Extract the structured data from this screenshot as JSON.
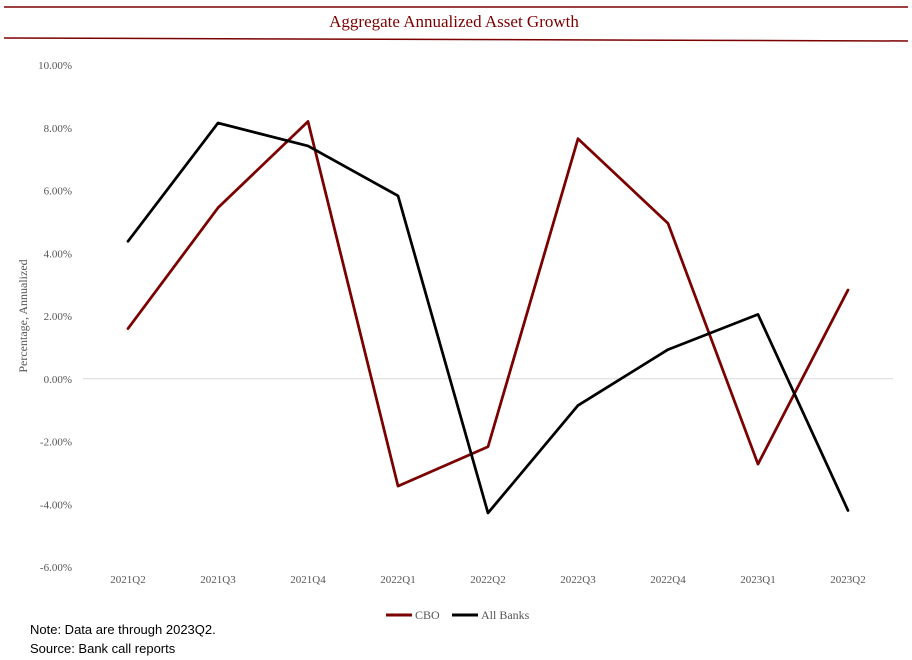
{
  "chart_data": {
    "type": "line",
    "title": "Aggregate Annualized Asset Growth",
    "xlabel": "",
    "ylabel": "Percentage, Annualized",
    "categories": [
      "2021Q2",
      "2021Q3",
      "2021Q4",
      "2022Q1",
      "2022Q2",
      "2022Q3",
      "2022Q4",
      "2023Q1",
      "2023Q2"
    ],
    "series": [
      {
        "name": "CBO",
        "color": "#7b0000",
        "values": [
          1.6,
          5.45,
          8.2,
          -3.42,
          -2.17,
          7.65,
          4.95,
          -2.72,
          2.83
        ]
      },
      {
        "name": "All Banks",
        "color": "#000000",
        "values": [
          4.38,
          8.15,
          7.42,
          5.83,
          -4.28,
          -0.85,
          0.93,
          2.05,
          -4.2
        ]
      }
    ],
    "ylim": [
      -6,
      10
    ],
    "yticks": [
      -6,
      -4,
      -2,
      0,
      2,
      4,
      6,
      8,
      10
    ],
    "ytick_format": "percent-2dp",
    "grid": "zero-line-only",
    "legend_position": "bottom-center"
  },
  "notes": {
    "line1": "Note: Data are through 2023Q2.",
    "line2": "Source: Bank call reports"
  },
  "colors": {
    "accent": "#7b0000",
    "text": "#555555",
    "zero_line": "#d9d9d9"
  }
}
